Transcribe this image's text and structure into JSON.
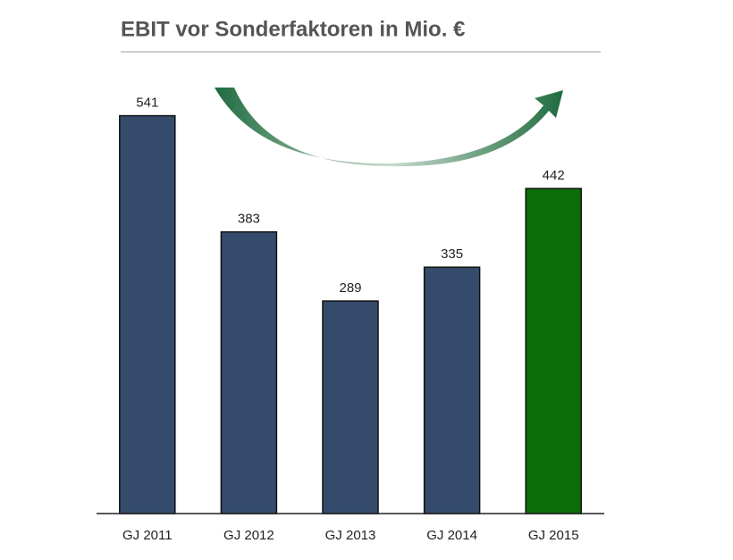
{
  "chart_data": {
    "type": "bar",
    "title": "EBIT vor Sonderfaktoren in Mio. €",
    "categories": [
      "GJ 2011",
      "GJ 2012",
      "GJ 2013",
      "GJ 2014",
      "GJ 2015"
    ],
    "values": [
      541,
      383,
      289,
      335,
      442
    ],
    "colors": [
      "#344b6c",
      "#344b6c",
      "#344b6c",
      "#344b6c",
      "#0b6e0b"
    ],
    "ylim": [
      0,
      600
    ]
  }
}
